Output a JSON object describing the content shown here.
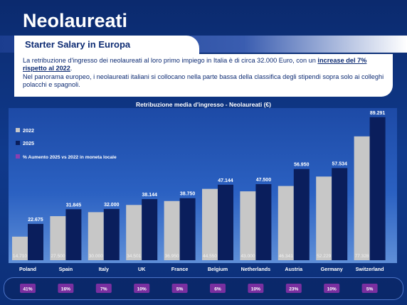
{
  "slide": {
    "title": "Neolaureati",
    "subtitle": "Starter Salary in Europa"
  },
  "intro": {
    "p1_a": "La retribuzione d'ingresso dei neolaureati al loro primo impiego in Italia è di circa 32.000 Euro, con un ",
    "p1_hl": "increase del 7% rispetto al 2022",
    "p1_b": ".",
    "p2": "Nel panorama europeo, i neolaureati italiani si collocano nella parte bassa della classifica degli stipendi sopra solo ai colleghi polacchi e spagnoli."
  },
  "colors": {
    "series_2022": "#c7c7c7",
    "series_2025": "#0a1e5c",
    "pct_box": "#7a2fa0",
    "legend_pct": "#8b3fb0"
  },
  "chart_data": {
    "type": "bar",
    "title": "Retribuzione media d'ingresso - Neolaureati (€)",
    "categories": [
      "Poland",
      "Spain",
      "Italy",
      "UK",
      "France",
      "Belgium",
      "Netherlands",
      "Austria",
      "Germany",
      "Switzerland"
    ],
    "series": [
      {
        "name": "2022",
        "values": [
          14710,
          27500,
          30000,
          34501,
          36950,
          44550,
          43000,
          46341,
          52229,
          77328
        ],
        "labels": [
          "14.710",
          "27.500",
          "30.000",
          "34.501",
          "36.950",
          "44.550",
          "43.000",
          "46.341",
          "52.229",
          "77.328"
        ]
      },
      {
        "name": "2025",
        "values": [
          22675,
          31845,
          32000,
          38144,
          38750,
          47144,
          47500,
          56950,
          57534,
          89291
        ],
        "labels": [
          "22.675",
          "31.845",
          "32.000",
          "38.144",
          "38.750",
          "47.144",
          "47.500",
          "56.950",
          "57.534",
          "89.291"
        ]
      }
    ],
    "pct_legend": "% Aumento 2025 vs 2022  in moneta locale",
    "pct_increase": [
      "41%",
      "16%",
      "7%",
      "10%",
      "5%",
      "6%",
      "10%",
      "23%",
      "10%",
      "5%"
    ],
    "legend_placement": "top-left",
    "grid": false,
    "ylim": [
      0,
      95000
    ]
  }
}
